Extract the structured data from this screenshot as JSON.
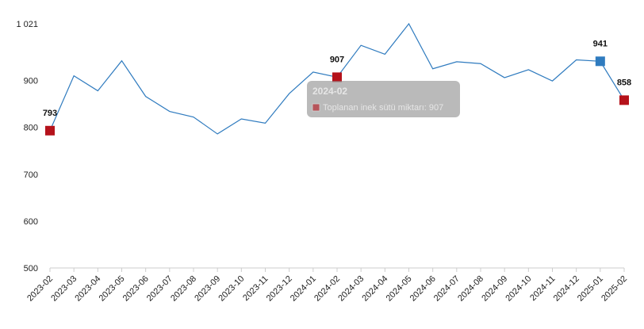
{
  "chart_data": {
    "type": "line",
    "categories": [
      "2023-02",
      "2023-03",
      "2023-04",
      "2023-05",
      "2023-06",
      "2023-07",
      "2023-08",
      "2023-09",
      "2023-10",
      "2023-11",
      "2023-12",
      "2024-01",
      "2024-02",
      "2024-03",
      "2024-04",
      "2024-05",
      "2024-06",
      "2024-07",
      "2024-08",
      "2024-09",
      "2024-10",
      "2024-11",
      "2024-12",
      "2025-01",
      "2025-02"
    ],
    "series": [
      {
        "name": "Toplanan inek sütü miktarı",
        "values": [
          793,
          910,
          878,
          942,
          866,
          834,
          822,
          786,
          818,
          809,
          872,
          918,
          907,
          975,
          956,
          1021,
          925,
          940,
          936,
          906,
          923,
          899,
          944,
          941,
          858
        ]
      }
    ],
    "y_ticks": [
      "500",
      "600",
      "700",
      "800",
      "900",
      "1 021"
    ],
    "ylim": [
      500,
      1021
    ],
    "line_color": "#2f7bbf",
    "highlight_points": [
      {
        "category": "2023-02",
        "label": "793",
        "color": "#b5121b"
      },
      {
        "category": "2024-02",
        "label": "907",
        "color": "#b5121b"
      },
      {
        "category": "2025-01",
        "label": "941",
        "color": "#2f7bbf"
      },
      {
        "category": "2025-02",
        "label": "858",
        "color": "#b5121b"
      }
    ],
    "tooltip": {
      "title": "2024-02",
      "text": "Toplanan inek sütü miktarı: 907",
      "swatch_color": "#b5121b",
      "anchor_category": "2024-02"
    },
    "grid": false
  }
}
